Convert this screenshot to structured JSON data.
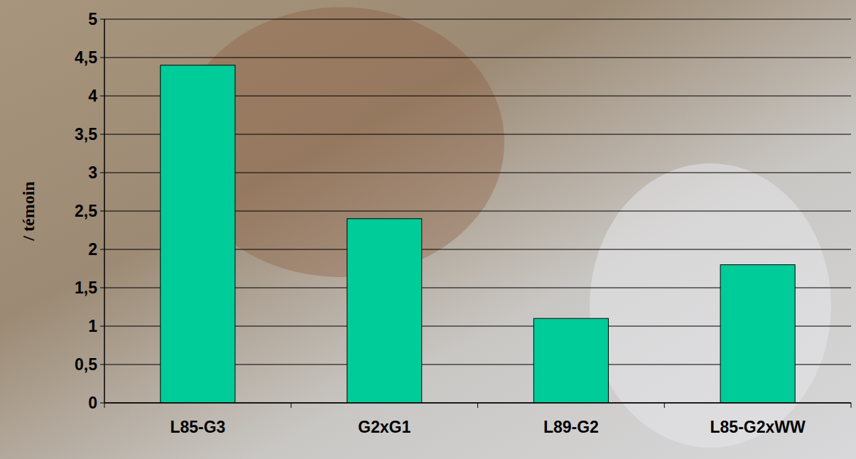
{
  "chart_data": {
    "type": "bar",
    "ylabel": "/ témoin",
    "categories": [
      "L85-G3",
      "G2xG1",
      "L89-G2",
      "L85-G2xWW"
    ],
    "values": [
      4.4,
      2.4,
      1.1,
      1.8
    ],
    "color": "#00cc99",
    "ylim": [
      0,
      5
    ],
    "yticks": [
      0,
      {
        "value": 0.5,
        "label": "0,5"
      },
      1,
      {
        "value": 1.5,
        "label": "1,5"
      },
      2,
      {
        "value": 2.5,
        "label": "2,5"
      },
      3,
      {
        "value": 3.5,
        "label": "3,5"
      },
      4,
      {
        "value": 4.5,
        "label": "4,5"
      },
      5
    ],
    "grid": true
  }
}
